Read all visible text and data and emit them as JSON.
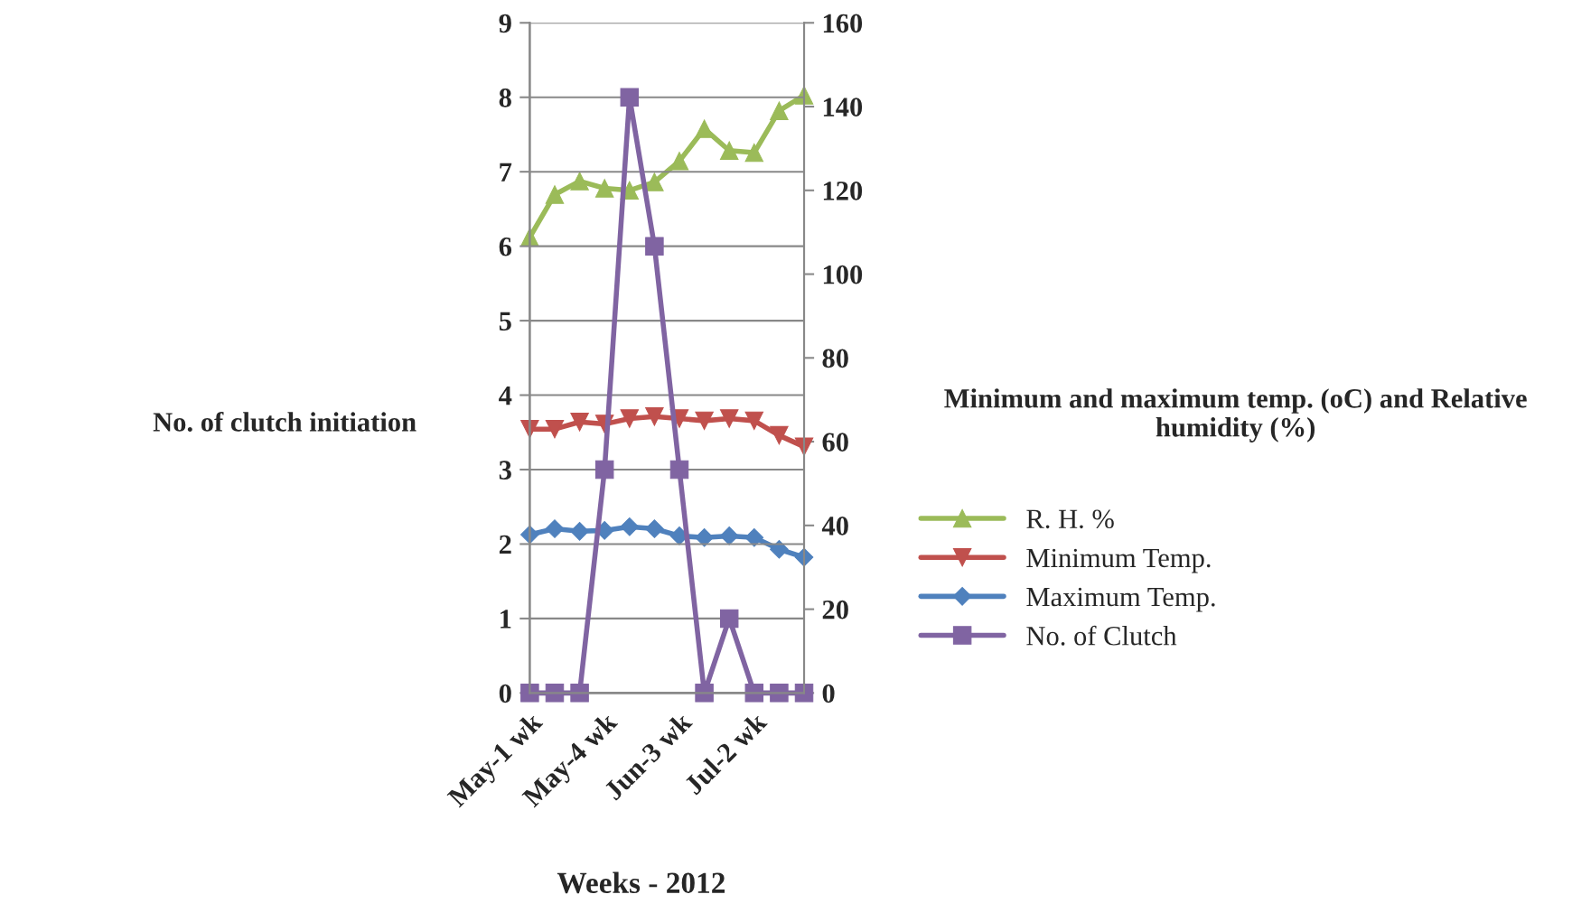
{
  "chart_data": {
    "type": "line",
    "xlabel": "Weeks - 2012",
    "ylabel": "No. of clutch initiation",
    "y2label": "Minimum and maximum temp. (oC) and Relative humidity (%)",
    "categories": [
      "May-1 wk",
      null,
      null,
      "May-4 wk",
      null,
      null,
      "Jun-3 wk",
      null,
      null,
      "Jul-2 wk",
      null,
      null
    ],
    "series": [
      {
        "name": "R. H. %",
        "color": "#9bbb59",
        "axis": "y2",
        "marker": "triangle",
        "values": [
          108.8,
          119,
          122.2,
          120.5,
          120,
          122,
          127,
          134.7,
          129.5,
          129,
          139,
          142.7
        ]
      },
      {
        "name": "Minimum Temp.",
        "color": "#c0504d",
        "axis": "y2",
        "marker": "triangle_down",
        "values": [
          63,
          63,
          64.7,
          64.2,
          65.5,
          66,
          65.5,
          65,
          65.5,
          65,
          61.5,
          58.8
        ]
      },
      {
        "name": "Maximum Temp.",
        "color": "#4f81bd",
        "axis": "y2",
        "marker": "diamond",
        "values": [
          37.8,
          39.2,
          38.6,
          38.8,
          39.7,
          39.2,
          37.5,
          37.1,
          37.5,
          37.1,
          34.3,
          32.4
        ]
      },
      {
        "name": "No. of Clutch",
        "color": "#8064a2",
        "axis": "y",
        "marker": "square",
        "values": [
          0,
          0,
          0,
          3,
          8,
          6,
          3,
          0,
          1,
          0,
          0,
          0
        ]
      }
    ],
    "ylim": [
      0,
      9
    ],
    "yticks": [
      0,
      1,
      2,
      3,
      4,
      5,
      6,
      7,
      8,
      9
    ],
    "y2lim": [
      0,
      160
    ],
    "y2ticks": [
      0,
      20,
      40,
      60,
      80,
      100,
      120,
      140,
      160
    ],
    "grid": "y",
    "legend": "right",
    "line_style": "solid"
  }
}
